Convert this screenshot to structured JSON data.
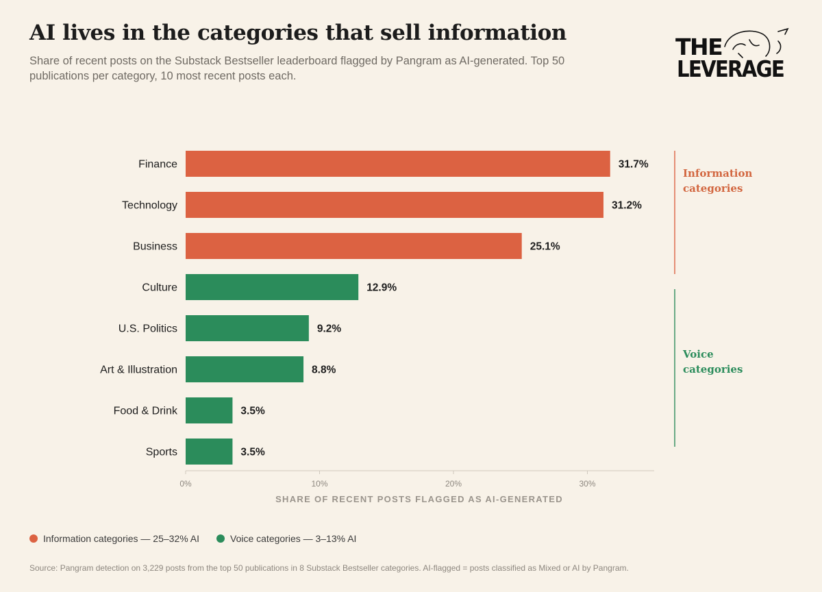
{
  "title": "AI lives in the categories that sell information",
  "subtitle": "Share of recent posts on the Substack Bestseller leaderboard flagged by Pangram as AI-generated. Top 50 publications per category, 10 most recent posts each.",
  "logo": {
    "line1": "THE",
    "line2": "LEVERAGE"
  },
  "chart_data": {
    "type": "bar",
    "orientation": "horizontal",
    "categories": [
      "Finance",
      "Technology",
      "Business",
      "Culture",
      "U.S. Politics",
      "Art & Illustration",
      "Food & Drink",
      "Sports"
    ],
    "values": [
      31.7,
      31.2,
      25.1,
      12.9,
      9.2,
      8.8,
      3.5,
      3.5
    ],
    "value_labels": [
      "31.7%",
      "31.2%",
      "25.1%",
      "12.9%",
      "9.2%",
      "8.8%",
      "3.5%",
      "3.5%"
    ],
    "groups": [
      "information",
      "information",
      "information",
      "voice",
      "voice",
      "voice",
      "voice",
      "voice"
    ],
    "xlabel": "SHARE OF RECENT POSTS FLAGGED AS AI-GENERATED",
    "xlim": [
      0,
      35
    ],
    "xticks": [
      0,
      10,
      20,
      30
    ],
    "xtick_labels": [
      "0%",
      "10%",
      "20%",
      "30%"
    ],
    "colors": {
      "information": "#dc6242",
      "voice": "#2b8c5b"
    },
    "grid": false
  },
  "bands": {
    "information": {
      "line1": "Information",
      "line2": "categories"
    },
    "voice": {
      "line1": "Voice",
      "line2": "categories"
    }
  },
  "legend": [
    {
      "label": "Information categories — 25–32% AI",
      "color": "#dc6242"
    },
    {
      "label": "Voice categories — 3–13% AI",
      "color": "#2b8c5b"
    }
  ],
  "source": "Source: Pangram detection on 3,229 posts from the top 50 publications in 8 Substack Bestseller categories. AI-flagged = posts classified as Mixed or AI by Pangram."
}
